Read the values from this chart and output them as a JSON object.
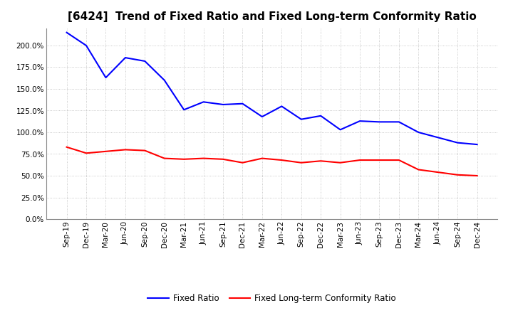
{
  "title": "[6424]  Trend of Fixed Ratio and Fixed Long-term Conformity Ratio",
  "x_labels": [
    "Sep-19",
    "Dec-19",
    "Mar-20",
    "Jun-20",
    "Sep-20",
    "Dec-20",
    "Mar-21",
    "Jun-21",
    "Sep-21",
    "Dec-21",
    "Mar-22",
    "Jun-22",
    "Sep-22",
    "Dec-22",
    "Mar-23",
    "Jun-23",
    "Sep-23",
    "Dec-23",
    "Mar-24",
    "Jun-24",
    "Sep-24",
    "Dec-24"
  ],
  "fixed_ratio": [
    215.0,
    200.0,
    163.0,
    186.0,
    182.0,
    160.0,
    126.0,
    135.0,
    132.0,
    133.0,
    118.0,
    130.0,
    115.0,
    119.0,
    103.0,
    113.0,
    112.0,
    112.0,
    100.0,
    94.0,
    88.0,
    86.0
  ],
  "fixed_lt_ratio": [
    83.0,
    76.0,
    78.0,
    80.0,
    79.0,
    70.0,
    69.0,
    70.0,
    69.0,
    65.0,
    70.0,
    68.0,
    65.0,
    67.0,
    65.0,
    68.0,
    68.0,
    68.0,
    57.0,
    54.0,
    51.0,
    50.0
  ],
  "fixed_ratio_color": "#0000FF",
  "fixed_lt_ratio_color": "#FF0000",
  "ylim": [
    0.0,
    220.0
  ],
  "yticks": [
    0.0,
    25.0,
    50.0,
    75.0,
    100.0,
    125.0,
    150.0,
    175.0,
    200.0
  ],
  "background_color": "#FFFFFF",
  "grid_color": "#AAAAAA",
  "title_fontsize": 11,
  "tick_fontsize": 7.5,
  "legend_fixed_ratio": "Fixed Ratio",
  "legend_fixed_lt_ratio": "Fixed Long-term Conformity Ratio"
}
